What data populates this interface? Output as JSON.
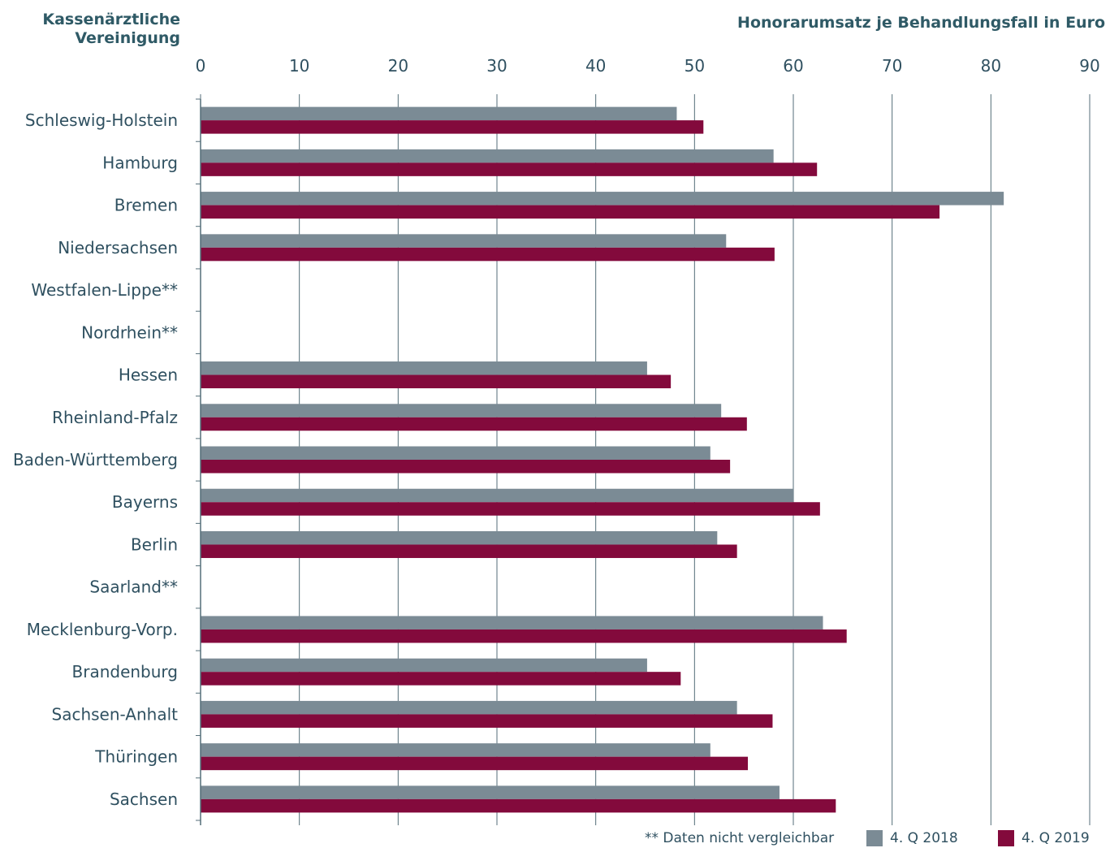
{
  "chart_data": {
    "type": "bar",
    "orientation": "horizontal",
    "ylabel_lines": [
      "Kassenärztliche",
      "Vereinigung"
    ],
    "xlabel": "Honorarumsatz je Behandlungsfall in Euro",
    "xlim": [
      0,
      90
    ],
    "xticks": [
      0,
      10,
      20,
      30,
      40,
      50,
      60,
      70,
      80,
      90
    ],
    "grid": true,
    "legend_position": "bottom-right",
    "categories": [
      "Schleswig-Holstein",
      "Hamburg",
      "Bremen",
      "Niedersachsen",
      "Westfalen-Lippe**",
      "Nordrhein**",
      "Hessen",
      "Rheinland-Pfalz",
      "Baden-Württemberg",
      "Bayerns",
      "Berlin",
      "Saarland**",
      "Mecklenburg-Vorp.",
      "Brandenburg",
      "Sachsen-Anhalt",
      "Thüringen",
      "Sachsen"
    ],
    "series": [
      {
        "name": "4. Q 2018",
        "color": "#7b8b95",
        "values": [
          48.2,
          58.0,
          81.3,
          53.2,
          null,
          null,
          45.2,
          52.7,
          51.6,
          60.0,
          52.3,
          null,
          63.0,
          45.2,
          54.3,
          51.6,
          58.6
        ]
      },
      {
        "name": "4. Q 2019",
        "color": "#830a3c",
        "values": [
          50.9,
          62.4,
          74.8,
          58.1,
          null,
          null,
          47.6,
          55.3,
          53.6,
          62.7,
          54.3,
          null,
          65.4,
          48.6,
          57.9,
          55.4,
          64.3
        ]
      }
    ],
    "footnote": "** Daten nicht vergleichbar"
  },
  "colors": {
    "text": "#2f5060",
    "axis": "#546e78",
    "grid": "#546e78"
  }
}
